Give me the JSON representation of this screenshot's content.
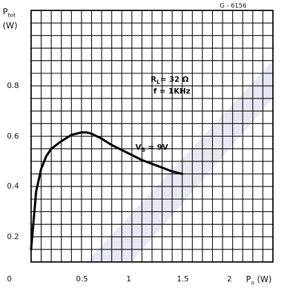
{
  "chart_data": {
    "type": "line",
    "figure_code": "G - 6156",
    "ylabel": "P",
    "ylabel_sub": "tot",
    "yunit": "(W)",
    "xlabel": "P",
    "xlabel_sub": "o",
    "xunit": "(W)",
    "xlim": [
      0,
      2.4
    ],
    "ylim": [
      0.1,
      1.1
    ],
    "x_ticks": [
      {
        "value": 0,
        "label": "0"
      },
      {
        "value": 0.5,
        "label": "0.5"
      },
      {
        "value": 1,
        "label": "1"
      },
      {
        "value": 1.5,
        "label": "1.5"
      },
      {
        "value": 2,
        "label": "2"
      }
    ],
    "y_ticks": [
      {
        "value": 0.2,
        "label": "0.2"
      },
      {
        "value": 0.4,
        "label": "0.4"
      },
      {
        "value": 0.6,
        "label": "0.6"
      },
      {
        "value": 0.8,
        "label": "0.8"
      }
    ],
    "grid": true,
    "conditions": [
      "R",
      "L",
      "= 32 Ω",
      "f = 1KHz"
    ],
    "series": [
      {
        "name": "V",
        "name_sub": "S",
        "name_suffix": " = 9V",
        "color": "#000000",
        "x": [
          0.0,
          0.05,
          0.1,
          0.15,
          0.2,
          0.3,
          0.4,
          0.5,
          0.55,
          0.6,
          0.7,
          0.8,
          0.9,
          1.0,
          1.1,
          1.2,
          1.3,
          1.4,
          1.5
        ],
        "y": [
          0.15,
          0.38,
          0.47,
          0.52,
          0.55,
          0.58,
          0.605,
          0.615,
          0.615,
          0.61,
          0.59,
          0.565,
          0.545,
          0.525,
          0.505,
          0.49,
          0.475,
          0.46,
          0.45
        ]
      }
    ]
  }
}
